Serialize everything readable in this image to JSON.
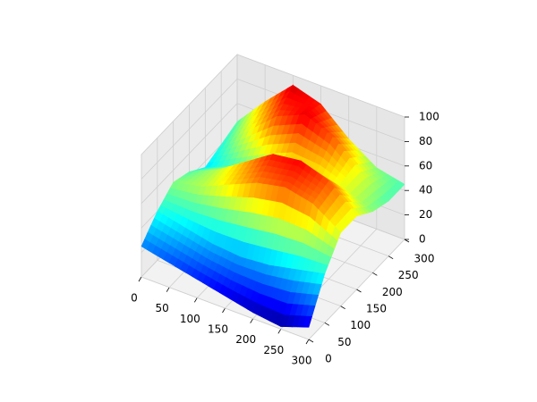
{
  "chart_data": {
    "type": "surface",
    "x": [
      0,
      50,
      100,
      150,
      200,
      250,
      300
    ],
    "y": [
      0,
      50,
      100,
      150,
      200,
      250,
      300
    ],
    "z": [
      [
        25,
        20,
        15,
        10,
        5,
        2,
        10
      ],
      [
        40,
        35,
        30,
        28,
        30,
        35,
        40
      ],
      [
        50,
        55,
        65,
        75,
        80,
        75,
        60
      ],
      [
        45,
        55,
        70,
        85,
        88,
        80,
        60
      ],
      [
        35,
        45,
        55,
        65,
        65,
        60,
        50
      ],
      [
        40,
        60,
        80,
        90,
        80,
        60,
        45
      ],
      [
        45,
        70,
        92,
        85,
        65,
        50,
        45
      ]
    ],
    "xlim": [
      0,
      300
    ],
    "ylim": [
      0,
      300
    ],
    "zlim": [
      0,
      100
    ],
    "xticks": [
      0,
      50,
      100,
      150,
      200,
      250,
      300
    ],
    "yticks": [
      0,
      50,
      100,
      150,
      200,
      250,
      300
    ],
    "zticks": [
      0,
      20,
      40,
      60,
      80,
      100
    ],
    "colormap": "jet",
    "grid": true
  }
}
